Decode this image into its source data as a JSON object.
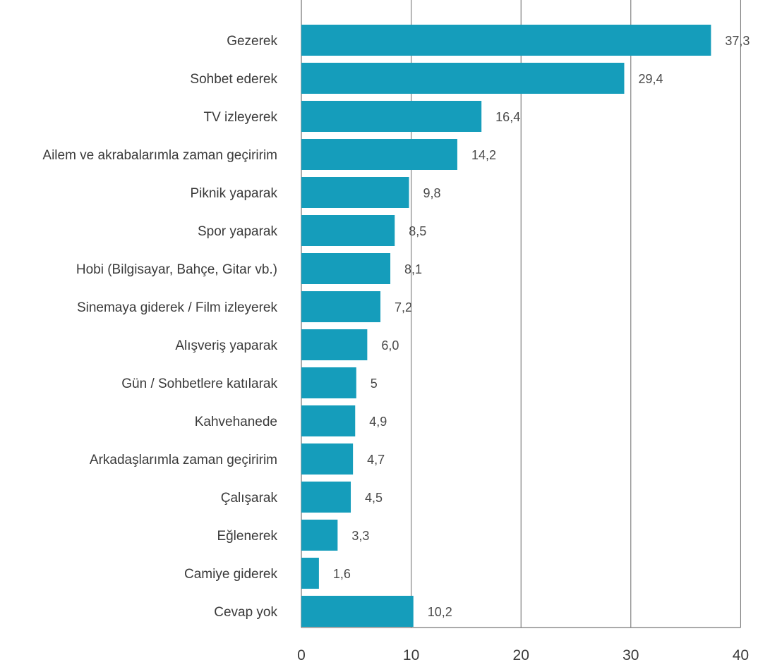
{
  "chart_data": {
    "type": "bar",
    "orientation": "horizontal",
    "title": "",
    "xlabel": "",
    "ylabel": "",
    "xlim": [
      0,
      40
    ],
    "x_ticks": [
      0,
      10,
      20,
      30,
      40
    ],
    "grid": true,
    "bar_color": "#159dbb",
    "categories": [
      "Gezerek",
      "Sohbet ederek",
      "TV izleyerek",
      "Ailem ve akrabalarımla zaman geçiririm",
      "Piknik yaparak",
      "Spor yaparak",
      "Hobi (Bilgisayar, Bahçe, Gitar vb.)",
      "Sinemaya giderek / Film izleyerek",
      "Alışveriş yaparak",
      "Gün / Sohbetlere katılarak",
      "Kahvehanede",
      "Arkadaşlarımla zaman geçiririm",
      "Çalışarak",
      "Eğlenerek",
      "Camiye giderek",
      "Cevap yok"
    ],
    "values": [
      37.3,
      29.4,
      16.4,
      14.2,
      9.8,
      8.5,
      8.1,
      7.2,
      6.0,
      5,
      4.9,
      4.7,
      4.5,
      3.3,
      1.6,
      10.2
    ],
    "value_labels": [
      "37,3",
      "29,4",
      "16,4",
      "14,2",
      "9,8",
      "8,5",
      "8,1",
      "7,2",
      "6,0",
      "5",
      "4,9",
      "4,7",
      "4,5",
      "3,3",
      "1,6",
      "10,2"
    ]
  }
}
